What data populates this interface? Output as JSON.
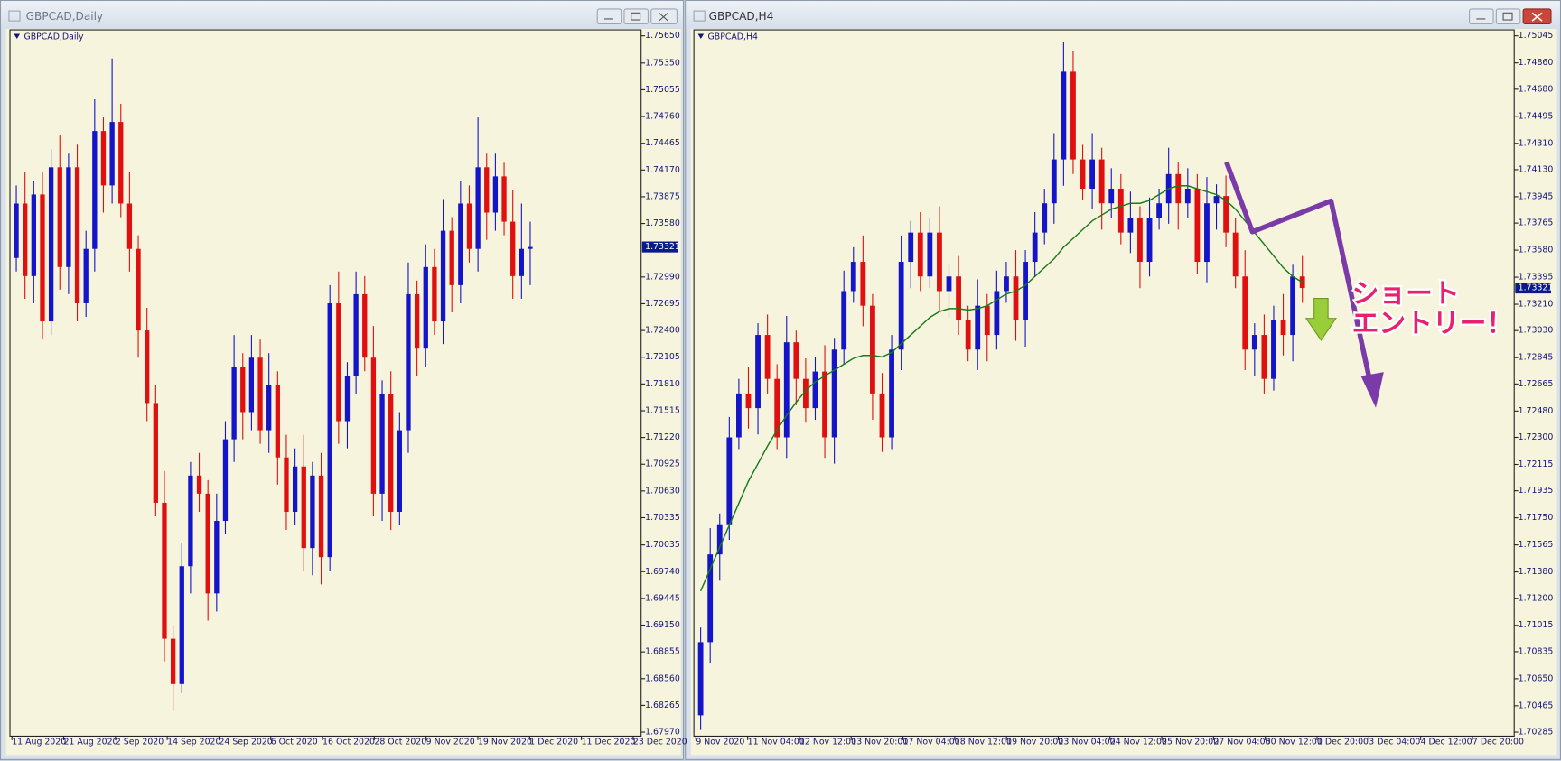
{
  "chart_data": [
    {
      "type": "candlestick",
      "window_title": "GBPCAD,Daily",
      "symbol_label": "GBPCAD,Daily",
      "up_color": "#1414c8",
      "down_color": "#e01010",
      "ylim": [
        1.6797,
        1.7565
      ],
      "yticks": [
        {
          "value": 1.7565,
          "label": "1.75650"
        },
        {
          "value": 1.7535,
          "label": "1.75350"
        },
        {
          "value": 1.75055,
          "label": "1.75055"
        },
        {
          "value": 1.7476,
          "label": "1.74760"
        },
        {
          "value": 1.74465,
          "label": "1.74465"
        },
        {
          "value": 1.7417,
          "label": "1.74170"
        },
        {
          "value": 1.73875,
          "label": "1.73875"
        },
        {
          "value": 1.7358,
          "label": "1.73580"
        },
        {
          "value": 1.7299,
          "label": "1.72990"
        },
        {
          "value": 1.72695,
          "label": "1.72695"
        },
        {
          "value": 1.724,
          "label": "1.72400"
        },
        {
          "value": 1.72105,
          "label": "1.72105"
        },
        {
          "value": 1.7181,
          "label": "1.71810"
        },
        {
          "value": 1.71515,
          "label": "1.71515"
        },
        {
          "value": 1.7122,
          "label": "1.71220"
        },
        {
          "value": 1.70925,
          "label": "1.70925"
        },
        {
          "value": 1.7063,
          "label": "1.70630"
        },
        {
          "value": 1.70335,
          "label": "1.70335"
        },
        {
          "value": 1.70035,
          "label": "1.70035"
        },
        {
          "value": 1.6974,
          "label": "1.69740"
        },
        {
          "value": 1.69445,
          "label": "1.69445"
        },
        {
          "value": 1.6915,
          "label": "1.69150"
        },
        {
          "value": 1.68855,
          "label": "1.68855"
        },
        {
          "value": 1.6856,
          "label": "1.68560"
        },
        {
          "value": 1.68265,
          "label": "1.68265"
        },
        {
          "value": 1.6797,
          "label": "1.67970"
        }
      ],
      "xlabels": [
        "11 Aug 2020",
        "21 Aug 2020",
        "2 Sep 2020",
        "14 Sep 2020",
        "24 Sep 2020",
        "6 Oct 2020",
        "16 Oct 2020",
        "28 Oct 2020",
        "9 Nov 2020",
        "19 Nov 2020",
        "1 Dec 2020",
        "11 Dec 2020",
        "23 Dec 2020"
      ],
      "open": [
        1.732,
        1.738,
        1.73,
        1.739,
        1.725,
        1.742,
        1.731,
        1.742,
        1.727,
        1.733,
        1.746,
        1.74,
        1.747,
        1.738,
        1.733,
        1.724,
        1.716,
        1.705,
        1.69,
        1.685,
        1.698,
        1.708,
        1.706,
        1.695,
        1.703,
        1.712,
        1.72,
        1.715,
        1.721,
        1.713,
        1.718,
        1.71,
        1.704,
        1.709,
        1.7,
        1.708,
        1.699,
        1.727,
        1.714,
        1.719,
        1.728,
        1.721,
        1.706,
        1.717,
        1.704,
        1.713,
        1.728,
        1.722,
        1.731,
        1.725,
        1.735,
        1.729,
        1.738,
        1.733,
        1.742,
        1.737,
        1.741,
        1.736,
        1.73,
        1.733
      ],
      "high": [
        1.74,
        1.7415,
        1.7405,
        1.7415,
        1.744,
        1.7455,
        1.7435,
        1.7445,
        1.735,
        1.7495,
        1.7475,
        1.754,
        1.749,
        1.7415,
        1.7345,
        1.7265,
        1.718,
        1.7085,
        1.6915,
        1.7005,
        1.7095,
        1.7105,
        1.7075,
        1.706,
        1.714,
        1.7235,
        1.7215,
        1.7235,
        1.723,
        1.7215,
        1.7195,
        1.7125,
        1.711,
        1.7125,
        1.7095,
        1.7105,
        1.729,
        1.7305,
        1.7205,
        1.7305,
        1.73,
        1.7245,
        1.7185,
        1.7195,
        1.715,
        1.7315,
        1.7295,
        1.7335,
        1.733,
        1.7385,
        1.7365,
        1.7405,
        1.74,
        1.7475,
        1.7435,
        1.7435,
        1.7425,
        1.7395,
        1.738,
        1.736
      ],
      "low": [
        1.7305,
        1.7275,
        1.727,
        1.723,
        1.7235,
        1.7285,
        1.728,
        1.725,
        1.7255,
        1.7305,
        1.737,
        1.738,
        1.7365,
        1.7305,
        1.721,
        1.714,
        1.7035,
        1.6875,
        1.682,
        1.684,
        1.695,
        1.704,
        1.692,
        1.693,
        1.7015,
        1.7095,
        1.712,
        1.713,
        1.7115,
        1.7105,
        1.707,
        1.702,
        1.7025,
        1.6975,
        1.697,
        1.696,
        1.6975,
        1.7115,
        1.711,
        1.717,
        1.7195,
        1.7035,
        1.703,
        1.702,
        1.7025,
        1.7105,
        1.719,
        1.72,
        1.7235,
        1.7225,
        1.726,
        1.727,
        1.7315,
        1.7305,
        1.734,
        1.735,
        1.7345,
        1.7275,
        1.7275,
        1.729
      ],
      "close": [
        1.738,
        1.73,
        1.739,
        1.725,
        1.742,
        1.731,
        1.742,
        1.727,
        1.733,
        1.746,
        1.74,
        1.747,
        1.738,
        1.733,
        1.724,
        1.716,
        1.705,
        1.69,
        1.685,
        1.698,
        1.708,
        1.706,
        1.695,
        1.703,
        1.712,
        1.72,
        1.715,
        1.721,
        1.713,
        1.718,
        1.71,
        1.704,
        1.709,
        1.7,
        1.708,
        1.699,
        1.727,
        1.714,
        1.719,
        1.728,
        1.721,
        1.706,
        1.717,
        1.704,
        1.713,
        1.728,
        1.722,
        1.731,
        1.725,
        1.735,
        1.729,
        1.738,
        1.733,
        1.742,
        1.737,
        1.741,
        1.736,
        1.73,
        1.733,
        1.73321
      ],
      "last_price": 1.73321
    },
    {
      "type": "candlestick",
      "window_title": "GBPCAD,H4",
      "symbol_label": "GBPCAD,H4",
      "up_color": "#1414c8",
      "down_color": "#e01010",
      "ylim": [
        1.70285,
        1.75045
      ],
      "yticks": [
        {
          "value": 1.75045,
          "label": "1.75045"
        },
        {
          "value": 1.7486,
          "label": "1.74860"
        },
        {
          "value": 1.7468,
          "label": "1.74680"
        },
        {
          "value": 1.74495,
          "label": "1.74495"
        },
        {
          "value": 1.7431,
          "label": "1.74310"
        },
        {
          "value": 1.7413,
          "label": "1.74130"
        },
        {
          "value": 1.73945,
          "label": "1.73945"
        },
        {
          "value": 1.73765,
          "label": "1.73765"
        },
        {
          "value": 1.7358,
          "label": "1.73580"
        },
        {
          "value": 1.73395,
          "label": "1.73395"
        },
        {
          "value": 1.7321,
          "label": "1.73210"
        },
        {
          "value": 1.7303,
          "label": "1.73030"
        },
        {
          "value": 1.72845,
          "label": "1.72845"
        },
        {
          "value": 1.72665,
          "label": "1.72665"
        },
        {
          "value": 1.7248,
          "label": "1.72480"
        },
        {
          "value": 1.723,
          "label": "1.72300"
        },
        {
          "value": 1.72115,
          "label": "1.72115"
        },
        {
          "value": 1.71935,
          "label": "1.71935"
        },
        {
          "value": 1.7175,
          "label": "1.71750"
        },
        {
          "value": 1.71565,
          "label": "1.71565"
        },
        {
          "value": 1.7138,
          "label": "1.71380"
        },
        {
          "value": 1.712,
          "label": "1.71200"
        },
        {
          "value": 1.71015,
          "label": "1.71015"
        },
        {
          "value": 1.70835,
          "label": "1.70835"
        },
        {
          "value": 1.7065,
          "label": "1.70650"
        },
        {
          "value": 1.70465,
          "label": "1.70465"
        },
        {
          "value": 1.70285,
          "label": "1.70285"
        }
      ],
      "xlabels": [
        "9 Nov 2020",
        "11 Nov 04:00",
        "12 Nov 12:00",
        "13 Nov 20:00",
        "17 Nov 04:00",
        "18 Nov 12:00",
        "19 Nov 20:00",
        "23 Nov 04:00",
        "24 Nov 12:00",
        "25 Nov 20:00",
        "27 Nov 04:00",
        "30 Nov 12:00",
        "1 Dec 20:00",
        "3 Dec 04:00",
        "4 Dec 12:00",
        "7 Dec 20:00"
      ],
      "open": [
        1.704,
        1.709,
        1.715,
        1.717,
        1.723,
        1.726,
        1.725,
        1.73,
        1.727,
        1.723,
        1.7295,
        1.727,
        1.725,
        1.7275,
        1.723,
        1.729,
        1.733,
        1.735,
        1.732,
        1.726,
        1.723,
        1.729,
        1.735,
        1.737,
        1.734,
        1.737,
        1.733,
        1.734,
        1.731,
        1.729,
        1.732,
        1.73,
        1.733,
        1.734,
        1.731,
        1.735,
        1.737,
        1.739,
        1.742,
        1.748,
        1.742,
        1.74,
        1.742,
        1.739,
        1.74,
        1.737,
        1.738,
        1.735,
        1.738,
        1.739,
        1.741,
        1.739,
        1.74,
        1.735,
        1.739,
        1.7395,
        1.737,
        1.734,
        1.729,
        1.73,
        1.727,
        1.731,
        1.73,
        1.734
      ],
      "high": [
        1.71,
        1.7168,
        1.7178,
        1.7244,
        1.727,
        1.7278,
        1.7308,
        1.7314,
        1.728,
        1.7313,
        1.7303,
        1.7284,
        1.7285,
        1.7293,
        1.7298,
        1.7344,
        1.736,
        1.7368,
        1.7328,
        1.7274,
        1.73,
        1.7368,
        1.7378,
        1.7384,
        1.738,
        1.7388,
        1.7348,
        1.7354,
        1.732,
        1.7338,
        1.7328,
        1.7344,
        1.735,
        1.7358,
        1.7358,
        1.7384,
        1.74,
        1.7438,
        1.75,
        1.7494,
        1.743,
        1.7438,
        1.7428,
        1.7414,
        1.741,
        1.7398,
        1.7388,
        1.7394,
        1.74,
        1.7428,
        1.7418,
        1.7414,
        1.741,
        1.7408,
        1.7403,
        1.7409,
        1.738,
        1.7358,
        1.7308,
        1.7314,
        1.732,
        1.7328,
        1.7348,
        1.7354
      ],
      "low": [
        1.703,
        1.7076,
        1.7132,
        1.716,
        1.7222,
        1.7236,
        1.7232,
        1.726,
        1.7222,
        1.7216,
        1.7252,
        1.724,
        1.7242,
        1.7216,
        1.7212,
        1.728,
        1.7322,
        1.7306,
        1.7242,
        1.722,
        1.7222,
        1.7276,
        1.7332,
        1.733,
        1.7332,
        1.7316,
        1.7312,
        1.73,
        1.7282,
        1.7276,
        1.7282,
        1.729,
        1.7322,
        1.7296,
        1.7292,
        1.734,
        1.7362,
        1.7376,
        1.7402,
        1.741,
        1.7392,
        1.7386,
        1.7372,
        1.738,
        1.7362,
        1.7356,
        1.7332,
        1.734,
        1.7372,
        1.7376,
        1.7372,
        1.738,
        1.7342,
        1.7336,
        1.7372,
        1.736,
        1.7332,
        1.7276,
        1.7272,
        1.726,
        1.7262,
        1.7286,
        1.7282,
        1.7322
      ],
      "close": [
        1.709,
        1.715,
        1.717,
        1.723,
        1.726,
        1.725,
        1.73,
        1.727,
        1.723,
        1.7295,
        1.727,
        1.725,
        1.7275,
        1.723,
        1.729,
        1.733,
        1.735,
        1.732,
        1.726,
        1.723,
        1.729,
        1.735,
        1.737,
        1.734,
        1.737,
        1.733,
        1.734,
        1.731,
        1.729,
        1.732,
        1.73,
        1.733,
        1.734,
        1.731,
        1.735,
        1.737,
        1.739,
        1.742,
        1.748,
        1.742,
        1.74,
        1.742,
        1.739,
        1.74,
        1.737,
        1.738,
        1.735,
        1.738,
        1.739,
        1.741,
        1.739,
        1.74,
        1.735,
        1.739,
        1.7395,
        1.737,
        1.734,
        1.729,
        1.73,
        1.727,
        1.731,
        1.73,
        1.734,
        1.73321
      ],
      "ma": {
        "color": "#1a7a1a",
        "values": [
          1.7125,
          1.714,
          1.7155,
          1.717,
          1.7185,
          1.72,
          1.7212,
          1.7224,
          1.7235,
          1.7245,
          1.7254,
          1.7262,
          1.7268,
          1.7272,
          1.7276,
          1.728,
          1.7284,
          1.7286,
          1.7286,
          1.7285,
          1.7288,
          1.7294,
          1.73,
          1.7306,
          1.7312,
          1.7316,
          1.7318,
          1.7318,
          1.7317,
          1.7318,
          1.732,
          1.7324,
          1.7328,
          1.733,
          1.7334,
          1.734,
          1.7346,
          1.7352,
          1.736,
          1.7366,
          1.7372,
          1.7378,
          1.7382,
          1.7386,
          1.7388,
          1.739,
          1.739,
          1.7392,
          1.7396,
          1.74,
          1.7402,
          1.7402,
          1.74,
          1.7398,
          1.7396,
          1.7392,
          1.7386,
          1.7378,
          1.737,
          1.7362,
          1.7354,
          1.7346,
          1.734,
          1.7336
        ]
      },
      "last_price": 1.73321,
      "annotation": [
        "ショート",
        "エントリー！"
      ]
    }
  ]
}
